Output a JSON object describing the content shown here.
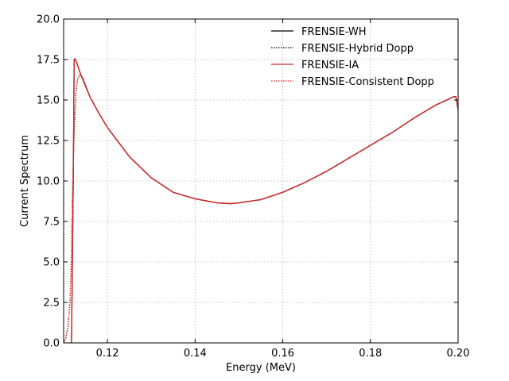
{
  "chart_data": {
    "type": "line",
    "xlabel": "Energy (MeV)",
    "ylabel": "Current Spectrum",
    "xlim": [
      0.11,
      0.2
    ],
    "ylim": [
      0,
      20
    ],
    "xticks": [
      0.12,
      0.14,
      0.16,
      0.18,
      0.2
    ],
    "xtick_labels": [
      "0.12",
      "0.14",
      "0.16",
      "0.18",
      "0.20"
    ],
    "yticks": [
      0,
      2.5,
      5,
      7.5,
      10,
      12.5,
      15,
      17.5,
      20
    ],
    "ytick_labels": [
      "0.0",
      "2.5",
      "5.0",
      "7.5",
      "10.0",
      "12.5",
      "15.0",
      "17.5",
      "20.0"
    ],
    "grid": true,
    "legend_position": "top-right",
    "series": [
      {
        "name": "FRENSIE-WH",
        "color": "#000000",
        "dash": "solid",
        "x": [
          0.1118,
          0.1122,
          0.1124,
          0.1126,
          0.113,
          0.114,
          0.116,
          0.118,
          0.12,
          0.125,
          0.13,
          0.135,
          0.14,
          0.145,
          0.148,
          0.15,
          0.155,
          0.16,
          0.165,
          0.17,
          0.175,
          0.18,
          0.185,
          0.19,
          0.195,
          0.199,
          0.1995,
          0.2
        ],
        "y": [
          0.0,
          10.0,
          17.5,
          17.55,
          17.3,
          16.5,
          15.2,
          14.2,
          13.3,
          11.5,
          10.2,
          9.3,
          8.9,
          8.65,
          8.6,
          8.65,
          8.85,
          9.3,
          9.9,
          10.6,
          11.4,
          12.2,
          13.0,
          13.9,
          14.7,
          15.2,
          15.2,
          14.4
        ]
      },
      {
        "name": "FRENSIE-Hybrid Dopp",
        "color": "#000000",
        "dash": "dotted",
        "x": [
          0.11,
          0.1105,
          0.111,
          0.1115,
          0.1118,
          0.112,
          0.1124,
          0.1128,
          0.1132,
          0.1138,
          0.1145,
          0.116,
          0.118,
          0.12,
          0.125,
          0.13,
          0.135,
          0.14,
          0.145,
          0.148,
          0.15,
          0.155,
          0.16,
          0.165,
          0.17,
          0.175,
          0.18,
          0.185,
          0.19,
          0.195,
          0.199,
          0.1995,
          0.2
        ],
        "y": [
          0.0,
          0.3,
          1.0,
          2.8,
          5.5,
          9.0,
          13.0,
          15.5,
          16.3,
          16.6,
          16.3,
          15.2,
          14.2,
          13.3,
          11.5,
          10.2,
          9.3,
          8.9,
          8.65,
          8.6,
          8.65,
          8.85,
          9.3,
          9.9,
          10.6,
          11.4,
          12.2,
          13.0,
          13.9,
          14.7,
          15.2,
          15.2,
          14.4
        ]
      },
      {
        "name": "FRENSIE-IA",
        "color": "#d62728",
        "dash": "solid",
        "x": [
          0.1118,
          0.1122,
          0.1124,
          0.1126,
          0.113,
          0.114,
          0.116,
          0.118,
          0.12,
          0.125,
          0.13,
          0.135,
          0.14,
          0.145,
          0.148,
          0.15,
          0.155,
          0.16,
          0.165,
          0.17,
          0.175,
          0.18,
          0.185,
          0.19,
          0.195,
          0.199,
          0.1995,
          0.2
        ],
        "y": [
          0.0,
          10.0,
          17.5,
          17.55,
          17.3,
          16.5,
          15.2,
          14.2,
          13.3,
          11.5,
          10.2,
          9.3,
          8.9,
          8.65,
          8.6,
          8.65,
          8.85,
          9.3,
          9.9,
          10.6,
          11.4,
          12.2,
          13.0,
          13.9,
          14.7,
          15.2,
          15.2,
          14.4
        ]
      },
      {
        "name": "FRENSIE-Consistent Dopp",
        "color": "#d62728",
        "dash": "dotted",
        "x": [
          0.11,
          0.1105,
          0.111,
          0.1115,
          0.1118,
          0.112,
          0.1124,
          0.1128,
          0.1132,
          0.1138,
          0.1145,
          0.116,
          0.118,
          0.12,
          0.125,
          0.13,
          0.135,
          0.14,
          0.145,
          0.148,
          0.15,
          0.155,
          0.16,
          0.165,
          0.17,
          0.175,
          0.18,
          0.185,
          0.19,
          0.195,
          0.199,
          0.1995,
          0.2
        ],
        "y": [
          0.0,
          0.3,
          1.0,
          2.8,
          5.5,
          9.0,
          13.0,
          15.5,
          16.3,
          16.6,
          16.3,
          15.2,
          14.2,
          13.3,
          11.5,
          10.2,
          9.3,
          8.9,
          8.65,
          8.6,
          8.65,
          8.85,
          9.3,
          9.9,
          10.6,
          11.4,
          12.2,
          13.0,
          13.9,
          14.7,
          15.2,
          15.2,
          14.4
        ]
      }
    ]
  }
}
